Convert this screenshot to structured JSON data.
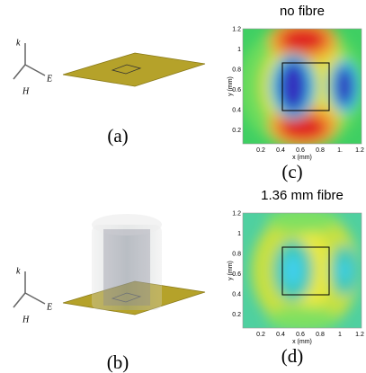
{
  "vectors": {
    "k": "k",
    "E": "E",
    "H": "H"
  },
  "panel_a": {
    "label": "(a)"
  },
  "panel_b": {
    "label": "(b)"
  },
  "panel_c": {
    "title": "no fibre",
    "label": "(c)",
    "x_axis_label": "x (mm)",
    "y_axis_label": "y (mm)",
    "xticks": [
      "0.2",
      "0.4",
      "0.6",
      "0.8",
      "1.",
      "1.2"
    ],
    "yticks": [
      "0.2",
      "0.4",
      "0.6",
      "0.8",
      "1",
      "1.2"
    ]
  },
  "panel_d": {
    "title": "1.36 mm fibre",
    "label": "(d)",
    "x_axis_label": "x (mm)",
    "y_axis_label": "y (mm)",
    "xticks": [
      "0.2",
      "0.4",
      "0.6",
      "0.8",
      "1",
      "1.2"
    ],
    "yticks": [
      "0.2",
      "0.4",
      "0.6",
      "0.8",
      "1",
      "1.2"
    ]
  }
}
